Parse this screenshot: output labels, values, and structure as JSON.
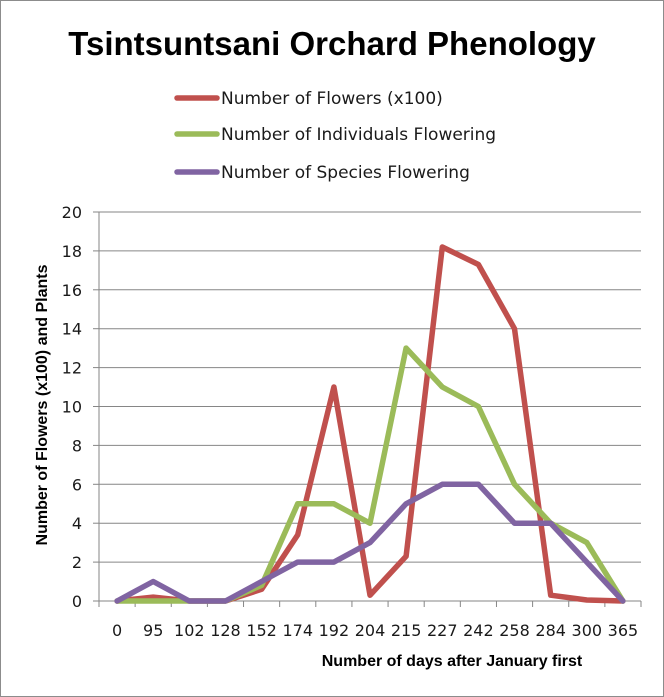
{
  "chart_data": {
    "type": "line",
    "title": "Tsintsuntsani Orchard Phenology",
    "xlabel": "Number of days after January first",
    "ylabel": "Number of Flowers (x100) and Plants",
    "categories": [
      "0",
      "95",
      "102",
      "128",
      "152",
      "174",
      "192",
      "204",
      "215",
      "227",
      "242",
      "258",
      "284",
      "300",
      "365"
    ],
    "ylim": [
      0,
      20
    ],
    "yticks": [
      "0",
      "2",
      "4",
      "6",
      "8",
      "10",
      "12",
      "14",
      "16",
      "18",
      "20"
    ],
    "grid": true,
    "legend_position": "top",
    "series": [
      {
        "name": "Number of Flowers (x100)",
        "color": "#c0504d",
        "values": [
          0,
          0.2,
          0,
          0,
          0.6,
          3.4,
          11,
          0.3,
          2.3,
          18.2,
          17.3,
          14,
          0.3,
          0.05,
          0
        ]
      },
      {
        "name": "Number of Individuals Flowering",
        "color": "#9bbb59",
        "values": [
          0,
          0,
          0,
          0,
          0.8,
          5,
          5,
          4,
          13,
          11,
          10,
          6,
          4,
          3,
          0
        ]
      },
      {
        "name": "Number of Species Flowering",
        "color": "#8064a2",
        "values": [
          0,
          1,
          0,
          0,
          1,
          2,
          2,
          3,
          5,
          6,
          6,
          4,
          4,
          2,
          0
        ]
      }
    ]
  }
}
